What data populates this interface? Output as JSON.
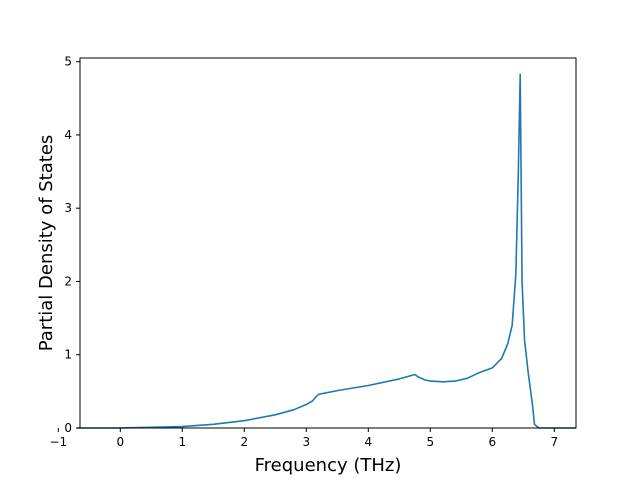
{
  "chart_data": {
    "type": "line",
    "title": "",
    "xlabel": "Frequency (THz)",
    "ylabel": "Partial Density of States",
    "xlim": [
      -0.65,
      7.35
    ],
    "ylim": [
      0,
      5.05
    ],
    "xticks": [
      -1,
      0,
      1,
      2,
      3,
      4,
      5,
      6,
      7
    ],
    "xtick_labels": [
      "−1",
      "0",
      "1",
      "2",
      "3",
      "4",
      "5",
      "6",
      "7"
    ],
    "yticks": [
      0,
      1,
      2,
      3,
      4,
      5
    ],
    "ytick_labels": [
      "0",
      "1",
      "2",
      "3",
      "4",
      "5"
    ],
    "grid": false,
    "legend": "none",
    "series": [
      {
        "color": "#1f77b4",
        "x": [
          -0.7,
          -0.5,
          0,
          0.5,
          1,
          1.5,
          2,
          2.5,
          2.8,
          3.0,
          3.1,
          3.15,
          3.2,
          3.5,
          4.0,
          4.5,
          4.75,
          4.8,
          4.9,
          5.0,
          5.2,
          5.4,
          5.6,
          5.8,
          6.0,
          6.15,
          6.25,
          6.32,
          6.38,
          6.42,
          6.45,
          6.48,
          6.52,
          6.58,
          6.65,
          6.68,
          6.75,
          7.0,
          7.35
        ],
        "y": [
          0,
          0,
          0,
          0.01,
          0.02,
          0.05,
          0.1,
          0.18,
          0.25,
          0.32,
          0.37,
          0.42,
          0.46,
          0.51,
          0.58,
          0.67,
          0.73,
          0.7,
          0.66,
          0.64,
          0.63,
          0.64,
          0.68,
          0.76,
          0.82,
          0.95,
          1.15,
          1.4,
          2.1,
          3.5,
          4.83,
          2.0,
          1.2,
          0.75,
          0.3,
          0.05,
          0,
          0,
          0
        ]
      }
    ]
  }
}
